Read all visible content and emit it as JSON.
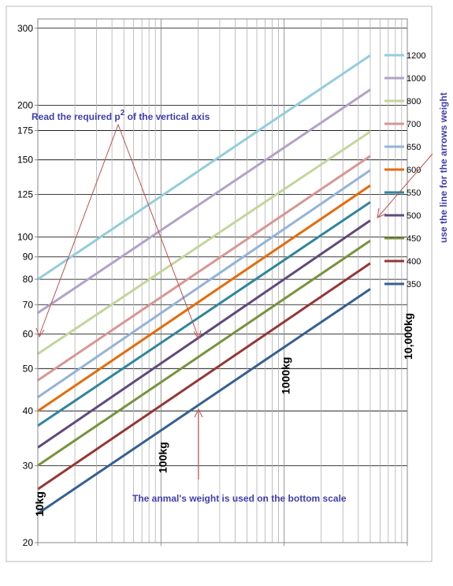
{
  "chart_data": {
    "type": "line",
    "log_x": true,
    "log_y": true,
    "grid": true,
    "legend": "right",
    "xlim": [
      10,
      10000
    ],
    "ylim": [
      20,
      315
    ],
    "xticks": [
      {
        "value": 10,
        "label": "10kg"
      },
      {
        "value": 100,
        "label": "100kg"
      },
      {
        "value": 1000,
        "label": "1000kg"
      },
      {
        "value": 10000,
        "label": "10,000kg"
      }
    ],
    "xminorticks": [
      20,
      30,
      40,
      50,
      60,
      70,
      80,
      90,
      200,
      300,
      400,
      500,
      600,
      700,
      800,
      900,
      2000,
      3000,
      4000,
      5000,
      6000,
      7000,
      8000,
      9000
    ],
    "yticks": [
      20,
      30,
      40,
      50,
      60,
      70,
      80,
      90,
      100,
      125,
      150,
      175,
      200,
      300
    ],
    "x": [
      10,
      5000
    ],
    "series": [
      {
        "name": "1200",
        "color": "#93cddd",
        "values": [
          80,
          260
        ]
      },
      {
        "name": "1000",
        "color": "#b3a2c7",
        "values": [
          67,
          217
        ]
      },
      {
        "name": "800",
        "color": "#c3d69b",
        "values": [
          54,
          174
        ]
      },
      {
        "name": "700",
        "color": "#d99694",
        "values": [
          47,
          153
        ]
      },
      {
        "name": "650",
        "color": "#95b3d7",
        "values": [
          43,
          142
        ]
      },
      {
        "name": "600",
        "color": "#e46c0a",
        "values": [
          40,
          131
        ]
      },
      {
        "name": "550",
        "color": "#31859c",
        "values": [
          37,
          120
        ]
      },
      {
        "name": "500",
        "color": "#604a7b",
        "values": [
          33,
          109
        ]
      },
      {
        "name": "450",
        "color": "#77933c",
        "values": [
          30,
          98
        ]
      },
      {
        "name": "400",
        "color": "#953735",
        "values": [
          26.5,
          87
        ]
      },
      {
        "name": "350",
        "color": "#376092",
        "values": [
          23.3,
          76
        ]
      }
    ],
    "annotations": [
      {
        "parts": [
          "Read the required p",
          "2",
          " of the vertical axis"
        ]
      },
      {
        "text": "The anmal's weight is used on the bottom scale"
      },
      {
        "text": "use the line for the arrows weight"
      }
    ]
  }
}
